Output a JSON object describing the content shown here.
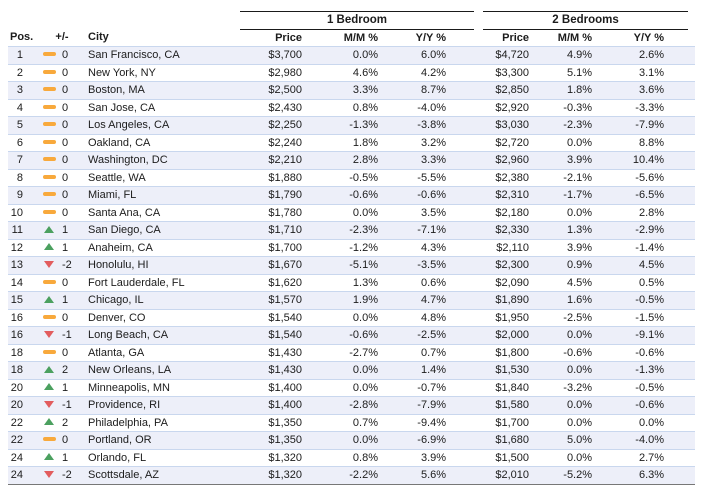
{
  "table": {
    "groups": [
      {
        "label": "1 Bedroom"
      },
      {
        "label": "2 Bedrooms"
      }
    ],
    "columns": {
      "pos": "Pos.",
      "change": "+/-",
      "city": "City",
      "price": "Price",
      "mm": "M/M %",
      "yy": "Y/Y %"
    },
    "rows": [
      {
        "pos": "1",
        "trend": "same",
        "change": "0",
        "city": "San Francisco, CA",
        "br1_price": "$3,700",
        "br1_mm": "0.0%",
        "br1_yy": "6.0%",
        "br2_price": "$4,720",
        "br2_mm": "4.9%",
        "br2_yy": "2.6%"
      },
      {
        "pos": "2",
        "trend": "same",
        "change": "0",
        "city": "New York, NY",
        "br1_price": "$2,980",
        "br1_mm": "4.6%",
        "br1_yy": "4.2%",
        "br2_price": "$3,300",
        "br2_mm": "5.1%",
        "br2_yy": "3.1%"
      },
      {
        "pos": "3",
        "trend": "same",
        "change": "0",
        "city": "Boston, MA",
        "br1_price": "$2,500",
        "br1_mm": "3.3%",
        "br1_yy": "8.7%",
        "br2_price": "$2,850",
        "br2_mm": "1.8%",
        "br2_yy": "3.6%"
      },
      {
        "pos": "4",
        "trend": "same",
        "change": "0",
        "city": "San Jose, CA",
        "br1_price": "$2,430",
        "br1_mm": "0.8%",
        "br1_yy": "-4.0%",
        "br2_price": "$2,920",
        "br2_mm": "-0.3%",
        "br2_yy": "-3.3%"
      },
      {
        "pos": "5",
        "trend": "same",
        "change": "0",
        "city": "Los Angeles, CA",
        "br1_price": "$2,250",
        "br1_mm": "-1.3%",
        "br1_yy": "-3.8%",
        "br2_price": "$3,030",
        "br2_mm": "-2.3%",
        "br2_yy": "-7.9%"
      },
      {
        "pos": "6",
        "trend": "same",
        "change": "0",
        "city": "Oakland, CA",
        "br1_price": "$2,240",
        "br1_mm": "1.8%",
        "br1_yy": "3.2%",
        "br2_price": "$2,720",
        "br2_mm": "0.0%",
        "br2_yy": "8.8%"
      },
      {
        "pos": "7",
        "trend": "same",
        "change": "0",
        "city": "Washington, DC",
        "br1_price": "$2,210",
        "br1_mm": "2.8%",
        "br1_yy": "3.3%",
        "br2_price": "$2,960",
        "br2_mm": "3.9%",
        "br2_yy": "10.4%"
      },
      {
        "pos": "8",
        "trend": "same",
        "change": "0",
        "city": "Seattle, WA",
        "br1_price": "$1,880",
        "br1_mm": "-0.5%",
        "br1_yy": "-5.5%",
        "br2_price": "$2,380",
        "br2_mm": "-2.1%",
        "br2_yy": "-5.6%"
      },
      {
        "pos": "9",
        "trend": "same",
        "change": "0",
        "city": "Miami, FL",
        "br1_price": "$1,790",
        "br1_mm": "-0.6%",
        "br1_yy": "-0.6%",
        "br2_price": "$2,310",
        "br2_mm": "-1.7%",
        "br2_yy": "-6.5%"
      },
      {
        "pos": "10",
        "trend": "same",
        "change": "0",
        "city": "Santa Ana, CA",
        "br1_price": "$1,780",
        "br1_mm": "0.0%",
        "br1_yy": "3.5%",
        "br2_price": "$2,180",
        "br2_mm": "0.0%",
        "br2_yy": "2.8%"
      },
      {
        "pos": "11",
        "trend": "up",
        "change": "1",
        "city": "San Diego, CA",
        "br1_price": "$1,710",
        "br1_mm": "-2.3%",
        "br1_yy": "-7.1%",
        "br2_price": "$2,330",
        "br2_mm": "1.3%",
        "br2_yy": "-2.9%"
      },
      {
        "pos": "12",
        "trend": "up",
        "change": "1",
        "city": "Anaheim, CA",
        "br1_price": "$1,700",
        "br1_mm": "-1.2%",
        "br1_yy": "4.3%",
        "br2_price": "$2,110",
        "br2_mm": "3.9%",
        "br2_yy": "-1.4%"
      },
      {
        "pos": "13",
        "trend": "down",
        "change": "-2",
        "city": "Honolulu, HI",
        "br1_price": "$1,670",
        "br1_mm": "-5.1%",
        "br1_yy": "-3.5%",
        "br2_price": "$2,300",
        "br2_mm": "0.9%",
        "br2_yy": "4.5%"
      },
      {
        "pos": "14",
        "trend": "same",
        "change": "0",
        "city": "Fort Lauderdale, FL",
        "br1_price": "$1,620",
        "br1_mm": "1.3%",
        "br1_yy": "0.6%",
        "br2_price": "$2,090",
        "br2_mm": "4.5%",
        "br2_yy": "0.5%"
      },
      {
        "pos": "15",
        "trend": "up",
        "change": "1",
        "city": "Chicago, IL",
        "br1_price": "$1,570",
        "br1_mm": "1.9%",
        "br1_yy": "4.7%",
        "br2_price": "$1,890",
        "br2_mm": "1.6%",
        "br2_yy": "-0.5%"
      },
      {
        "pos": "16",
        "trend": "same",
        "change": "0",
        "city": "Denver, CO",
        "br1_price": "$1,540",
        "br1_mm": "0.0%",
        "br1_yy": "4.8%",
        "br2_price": "$1,950",
        "br2_mm": "-2.5%",
        "br2_yy": "-1.5%"
      },
      {
        "pos": "16",
        "trend": "down",
        "change": "-1",
        "city": "Long Beach, CA",
        "br1_price": "$1,540",
        "br1_mm": "-0.6%",
        "br1_yy": "-2.5%",
        "br2_price": "$2,000",
        "br2_mm": "0.0%",
        "br2_yy": "-9.1%"
      },
      {
        "pos": "18",
        "trend": "same",
        "change": "0",
        "city": "Atlanta, GA",
        "br1_price": "$1,430",
        "br1_mm": "-2.7%",
        "br1_yy": "0.7%",
        "br2_price": "$1,800",
        "br2_mm": "-0.6%",
        "br2_yy": "-0.6%"
      },
      {
        "pos": "18",
        "trend": "up",
        "change": "2",
        "city": "New Orleans, LA",
        "br1_price": "$1,430",
        "br1_mm": "0.0%",
        "br1_yy": "1.4%",
        "br2_price": "$1,530",
        "br2_mm": "0.0%",
        "br2_yy": "-1.3%"
      },
      {
        "pos": "20",
        "trend": "up",
        "change": "1",
        "city": "Minneapolis, MN",
        "br1_price": "$1,400",
        "br1_mm": "0.0%",
        "br1_yy": "-0.7%",
        "br2_price": "$1,840",
        "br2_mm": "-3.2%",
        "br2_yy": "-0.5%"
      },
      {
        "pos": "20",
        "trend": "down",
        "change": "-1",
        "city": "Providence, RI",
        "br1_price": "$1,400",
        "br1_mm": "-2.8%",
        "br1_yy": "-7.9%",
        "br2_price": "$1,580",
        "br2_mm": "0.0%",
        "br2_yy": "-0.6%"
      },
      {
        "pos": "22",
        "trend": "up",
        "change": "2",
        "city": "Philadelphia, PA",
        "br1_price": "$1,350",
        "br1_mm": "0.7%",
        "br1_yy": "-9.4%",
        "br2_price": "$1,700",
        "br2_mm": "0.0%",
        "br2_yy": "0.0%"
      },
      {
        "pos": "22",
        "trend": "same",
        "change": "0",
        "city": "Portland, OR",
        "br1_price": "$1,350",
        "br1_mm": "0.0%",
        "br1_yy": "-6.9%",
        "br2_price": "$1,680",
        "br2_mm": "5.0%",
        "br2_yy": "-4.0%"
      },
      {
        "pos": "24",
        "trend": "up",
        "change": "1",
        "city": "Orlando, FL",
        "br1_price": "$1,320",
        "br1_mm": "0.8%",
        "br1_yy": "3.9%",
        "br2_price": "$1,500",
        "br2_mm": "0.0%",
        "br2_yy": "2.7%"
      },
      {
        "pos": "24",
        "trend": "down",
        "change": "-2",
        "city": "Scottsdale, AZ",
        "br1_price": "$1,320",
        "br1_mm": "-2.2%",
        "br1_yy": "5.6%",
        "br2_price": "$2,010",
        "br2_mm": "-5.2%",
        "br2_yy": "6.3%"
      }
    ]
  },
  "colors": {
    "text": "#1c1c1c",
    "stripe": "#edeff9",
    "separator": "#c9d7ee",
    "group_line": "#1a1a1a",
    "bottom_line": "#777777",
    "rank_up_green": "#4ba05f",
    "rank_down_red": "#e25c5e",
    "rank_same_orange": "#f8a93c"
  }
}
